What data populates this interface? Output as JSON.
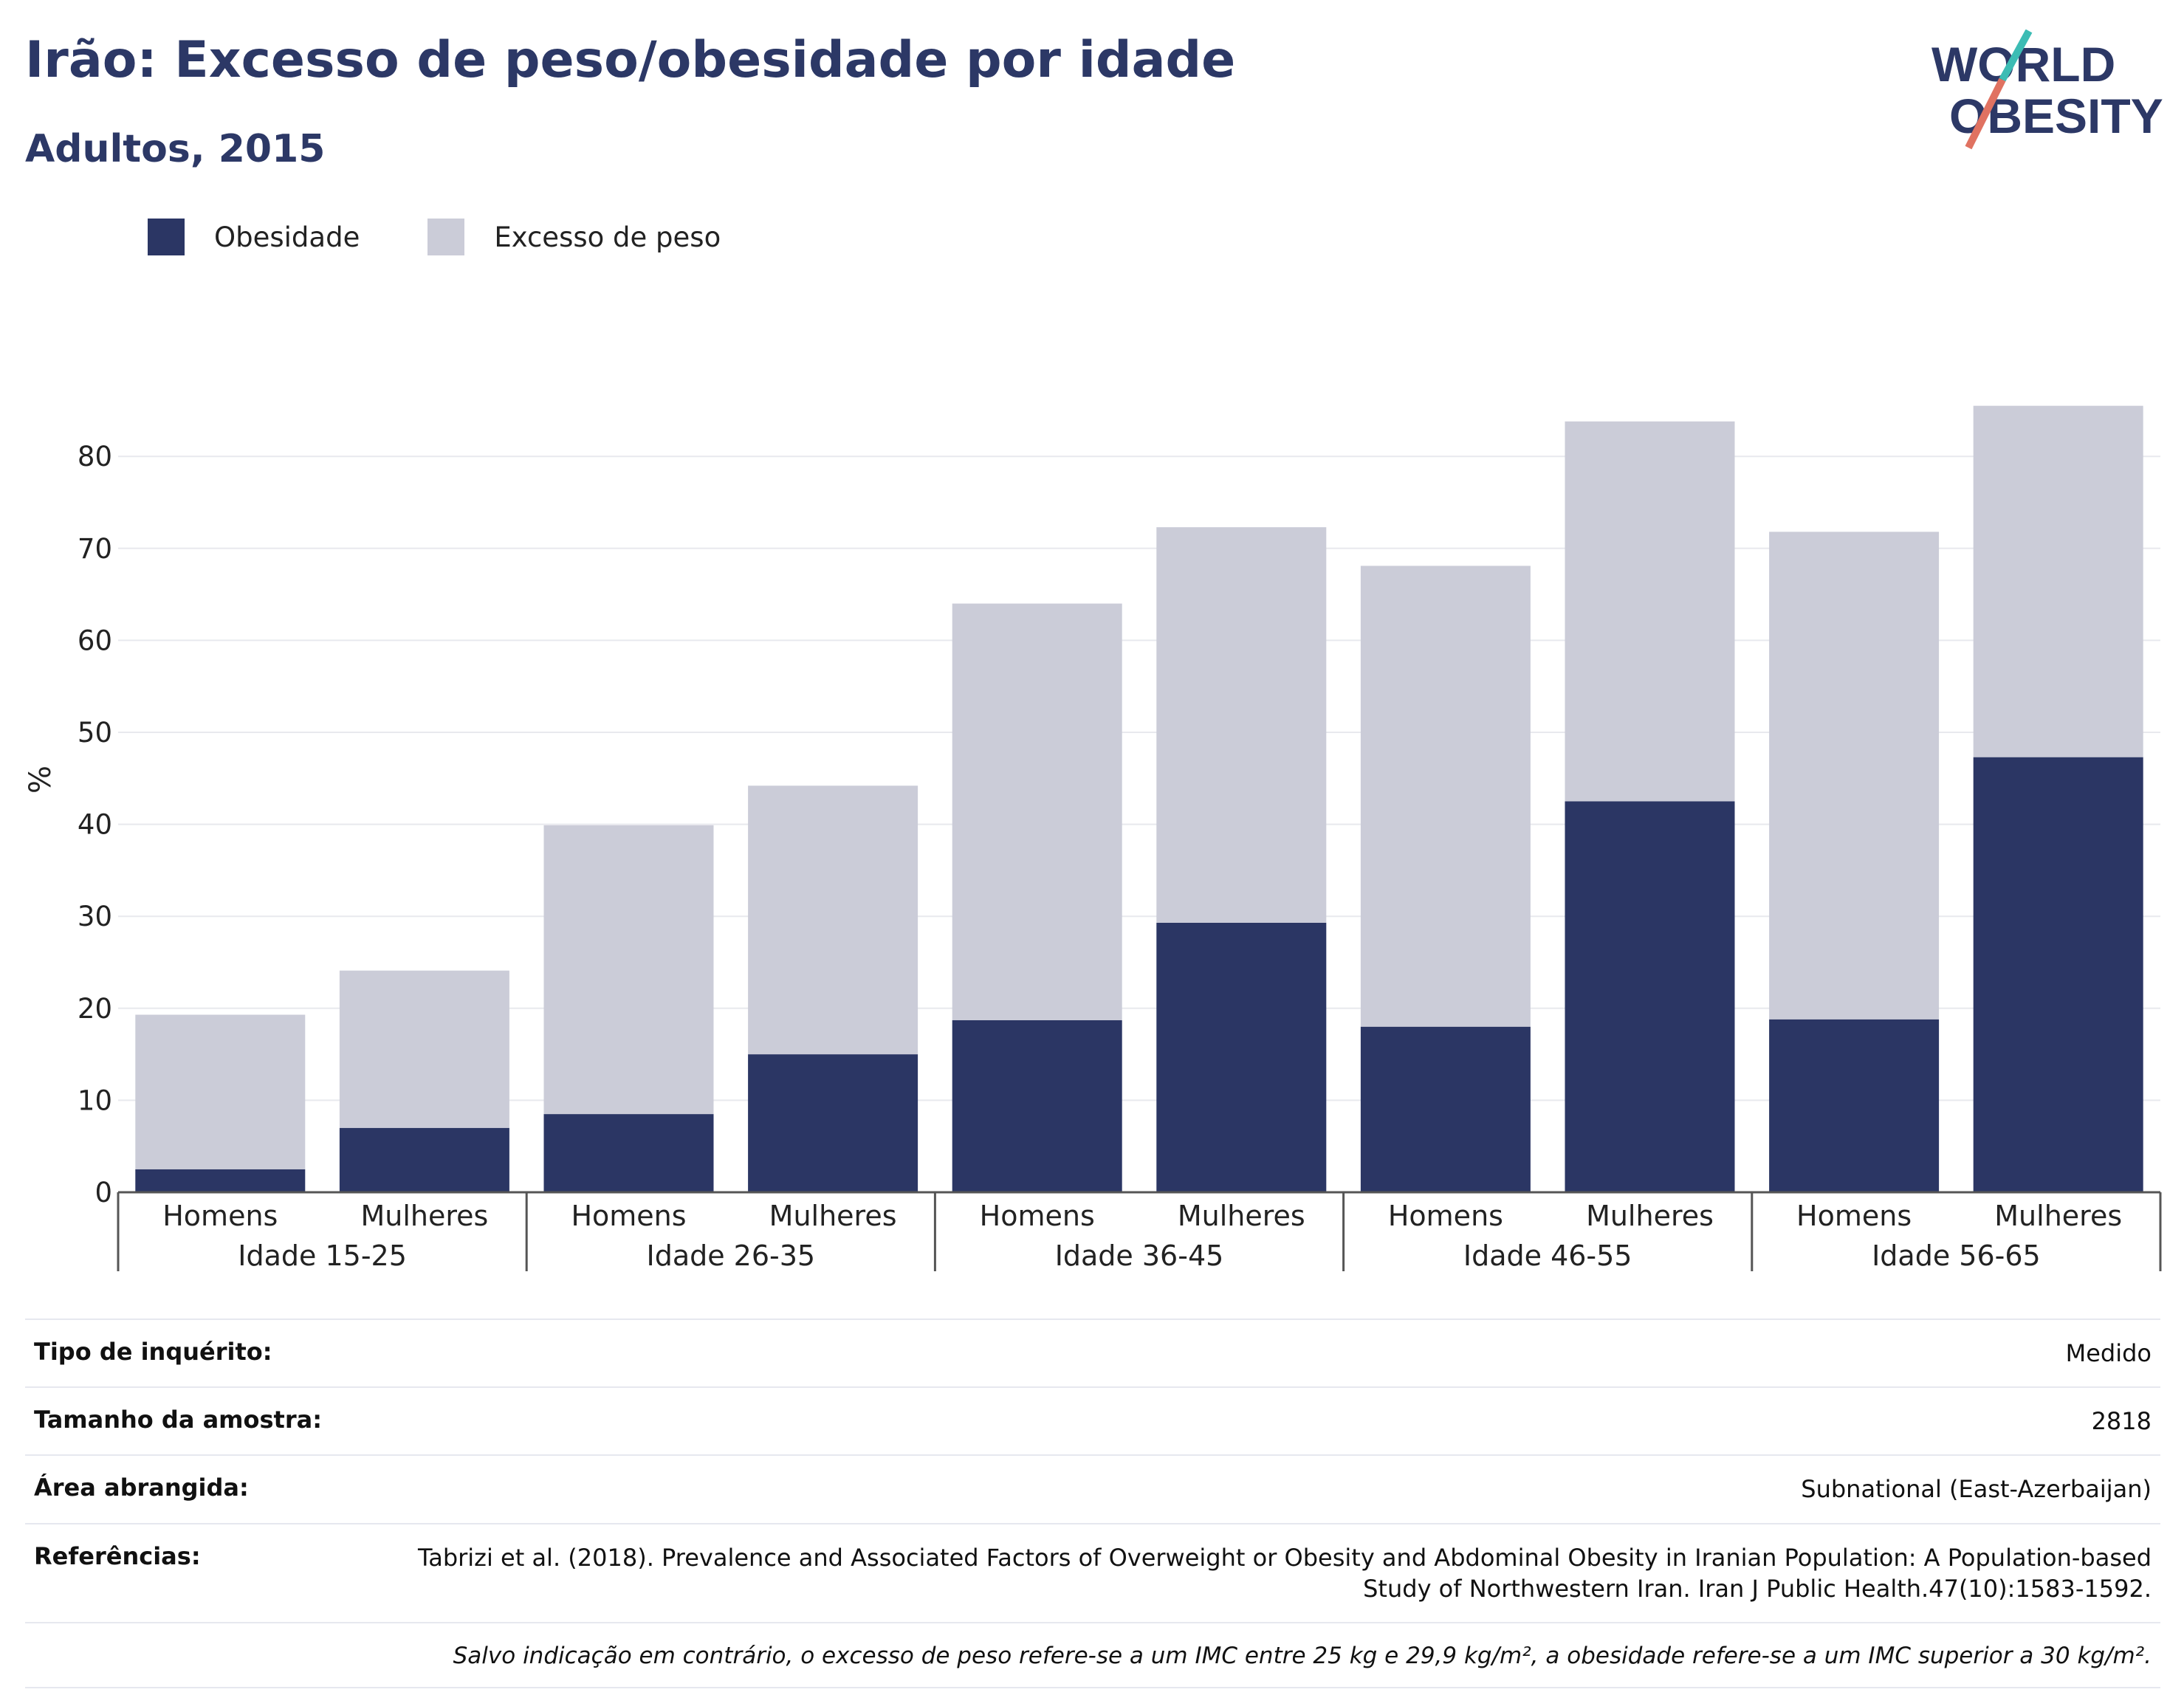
{
  "header": {
    "title": "Irão: Excesso de peso/obesidade por idade",
    "subtitle": "Adultos, 2015"
  },
  "logo": {
    "line1": "WORLD",
    "line2": "OBESITY",
    "colors": {
      "text": "#2c3866",
      "slash_top": "#3cbcb4",
      "slash_bottom": "#e07261"
    }
  },
  "legend": [
    {
      "label": "Obesidade",
      "color": "#2b3664"
    },
    {
      "label": "Excesso de peso",
      "color": "#cbccd8"
    }
  ],
  "chart_data": {
    "type": "bar",
    "stacked": true,
    "ylabel": "%",
    "ylim": [
      0,
      88
    ],
    "yticks": [
      0,
      10,
      20,
      30,
      40,
      50,
      60,
      70,
      80
    ],
    "grid": true,
    "legend_position": "top-left",
    "groups": [
      "Idade 15-25",
      "Idade 26-35",
      "Idade 36-45",
      "Idade 46-55",
      "Idade 56-65"
    ],
    "categories": [
      "Homens",
      "Mulheres",
      "Homens",
      "Mulheres",
      "Homens",
      "Mulheres",
      "Homens",
      "Mulheres",
      "Homens",
      "Mulheres"
    ],
    "series": [
      {
        "name": "Obesidade",
        "color": "#2b3664",
        "values": [
          2.5,
          7.0,
          8.5,
          15.0,
          18.7,
          29.3,
          18.0,
          42.5,
          18.8,
          47.3
        ]
      },
      {
        "name": "Excesso de peso",
        "color": "#cbccd8",
        "values": [
          16.8,
          17.1,
          31.4,
          29.2,
          45.3,
          43.0,
          50.1,
          41.3,
          53.0,
          38.2
        ]
      }
    ]
  },
  "info": [
    {
      "key": "Tipo de inquérito:",
      "value": "Medido"
    },
    {
      "key": "Tamanho da amostra:",
      "value": "2818"
    },
    {
      "key": "Área abrangida:",
      "value": "Subnational (East-Azerbaijan)"
    },
    {
      "key": "Referências:",
      "value": "Tabrizi et al. (2018). Prevalence and Associated Factors of Overweight or Obesity and Abdominal Obesity in Iranian Population: A Population-based Study of Northwestern Iran. Iran J Public Health.47(10):1583-1592."
    }
  ],
  "note": "Salvo indicação em contrário, o excesso de peso refere-se a um IMC entre 25 kg e 29,9 kg/m², a obesidade refere-se a um IMC superior a 30 kg/m²."
}
